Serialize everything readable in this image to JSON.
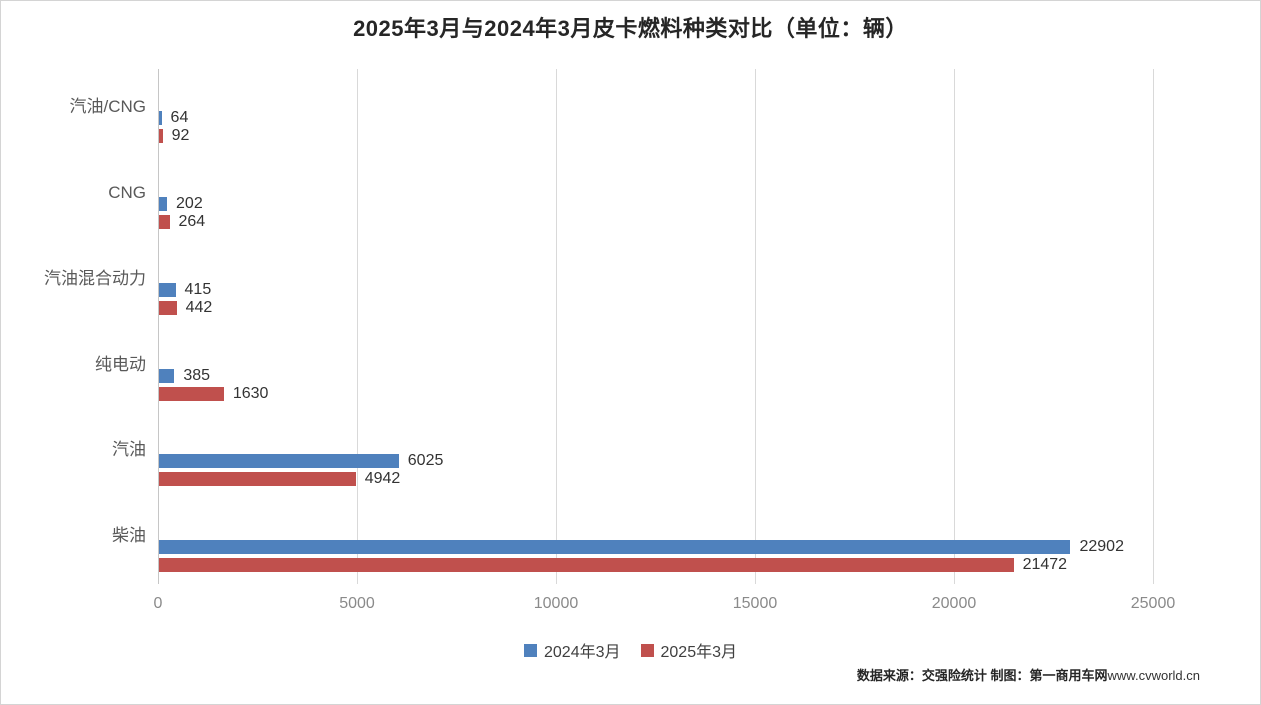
{
  "title": "2025年3月与2024年3月皮卡燃料种类对比（单位：辆）",
  "chart_data": {
    "type": "bar",
    "orientation": "horizontal",
    "title": "2025年3月与2024年3月皮卡燃料种类对比（单位：辆）",
    "categories": [
      "汽油/CNG",
      "CNG",
      "汽油混合动力",
      "纯电动",
      "汽油",
      "柴油"
    ],
    "categories_order": "top_to_bottom",
    "series": [
      {
        "key": "2024-03",
        "name": "2024年3月",
        "color": "#4F81BD",
        "values": [
          64,
          202,
          415,
          385,
          6025,
          22902
        ]
      },
      {
        "key": "2025-03",
        "name": "2025年3月",
        "color": "#C0504D",
        "values": [
          92,
          264,
          442,
          1630,
          4942,
          21472
        ]
      }
    ],
    "xlim": [
      0,
      25000
    ],
    "x_ticks": [
      0,
      5000,
      10000,
      15000,
      20000,
      25000
    ],
    "grid": "vertical",
    "legend_position": "bottom",
    "value_labels": true
  },
  "colors": {
    "series_2024": "#4F81BD",
    "series_2025": "#C0504D",
    "gridline": "#d9d9d9",
    "axis_line": "#c6c6c6",
    "category_label": "#595959",
    "tick_label": "#8a8a8a",
    "value_label": "#333333",
    "frame_border": "#d4d4d4"
  },
  "footer": {
    "source_label": "数据来源：交强险统计 制图：第一商用车网",
    "site": "www.cvworld.cn"
  }
}
